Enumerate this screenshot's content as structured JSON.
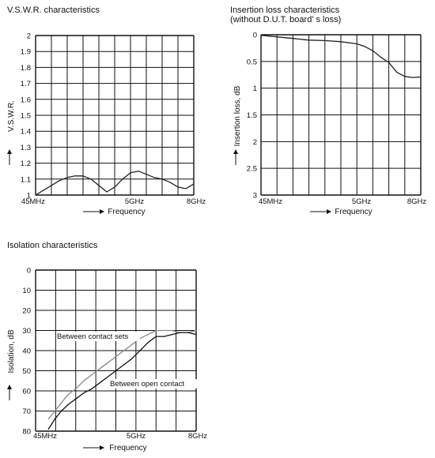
{
  "chart_data": [
    {
      "type": "line",
      "title": "V.S.W.R. characteristics",
      "xlabel": "Frequency",
      "ylabel": "V.S.W.R.",
      "x_ticks": [
        "45MHz",
        "5GHz",
        "8GHz"
      ],
      "y_ticks": [
        "2",
        "1.9",
        "1.8",
        "1.7",
        "1.6",
        "1.5",
        "1.4",
        "1.3",
        "1.2",
        "1.1",
        "1"
      ],
      "ylim": [
        1,
        2
      ],
      "grid": true,
      "series": [
        {
          "x": [
            0,
            0.05,
            0.1,
            0.15,
            0.2,
            0.25,
            0.3,
            0.35,
            0.4,
            0.45,
            0.5,
            0.55,
            0.6,
            0.65,
            0.7,
            0.75,
            0.8,
            0.85,
            0.9,
            0.95,
            1
          ],
          "values": [
            1.0,
            1.03,
            1.06,
            1.09,
            1.11,
            1.12,
            1.12,
            1.1,
            1.06,
            1.02,
            1.05,
            1.1,
            1.14,
            1.15,
            1.13,
            1.11,
            1.1,
            1.08,
            1.05,
            1.04,
            1.07
          ]
        }
      ]
    },
    {
      "type": "line",
      "title": "Insertion loss characteristics",
      "subtitle": "(without D.U.T. board' s loss)",
      "xlabel": "Frequency",
      "ylabel": "Insertion loss, dB",
      "x_ticks": [
        "45MHz",
        "5GHz",
        "8GHz"
      ],
      "y_ticks": [
        "0",
        "0.5",
        "1",
        "1.5",
        "2",
        "2.5",
        "3"
      ],
      "ylim": [
        0,
        3
      ],
      "grid": true,
      "series": [
        {
          "x": [
            0,
            0.1,
            0.2,
            0.3,
            0.4,
            0.5,
            0.6,
            0.65,
            0.7,
            0.75,
            0.8,
            0.85,
            0.9,
            0.95,
            1
          ],
          "values": [
            0.01,
            0.04,
            0.07,
            0.1,
            0.11,
            0.13,
            0.17,
            0.22,
            0.3,
            0.42,
            0.52,
            0.7,
            0.78,
            0.8,
            0.79
          ]
        }
      ]
    },
    {
      "type": "line",
      "title": "Isolation characteristics",
      "xlabel": "Frequency",
      "ylabel": "Isolation, dB",
      "x_ticks": [
        "45MHz",
        "5GHz",
        "8GHz"
      ],
      "y_ticks": [
        "0",
        "10",
        "20",
        "30",
        "40",
        "50",
        "60",
        "70",
        "80"
      ],
      "ylim": [
        0,
        80
      ],
      "grid": true,
      "annotations": [
        "Between contact sets",
        "Between open  contact"
      ],
      "series": [
        {
          "name": "Between contact sets",
          "x": [
            0.08,
            0.12,
            0.16,
            0.2,
            0.25,
            0.3,
            0.35,
            0.4,
            0.45,
            0.5,
            0.55,
            0.6,
            0.65,
            0.7,
            0.75,
            0.8,
            0.85,
            0.9,
            0.95,
            1
          ],
          "values": [
            74,
            70,
            66,
            62,
            59,
            55,
            52,
            49,
            46,
            43,
            40,
            37,
            34,
            32,
            30,
            30,
            30,
            31,
            31,
            30
          ]
        },
        {
          "name": "Between open  contact",
          "x": [
            0.08,
            0.12,
            0.16,
            0.2,
            0.25,
            0.3,
            0.35,
            0.4,
            0.45,
            0.5,
            0.55,
            0.6,
            0.65,
            0.7,
            0.75,
            0.8,
            0.85,
            0.9,
            0.95,
            1
          ],
          "values": [
            79,
            74,
            70,
            67,
            64,
            61,
            59,
            56,
            53,
            50,
            47,
            44,
            40,
            36,
            33,
            33,
            32,
            31,
            31,
            32
          ]
        }
      ]
    }
  ]
}
